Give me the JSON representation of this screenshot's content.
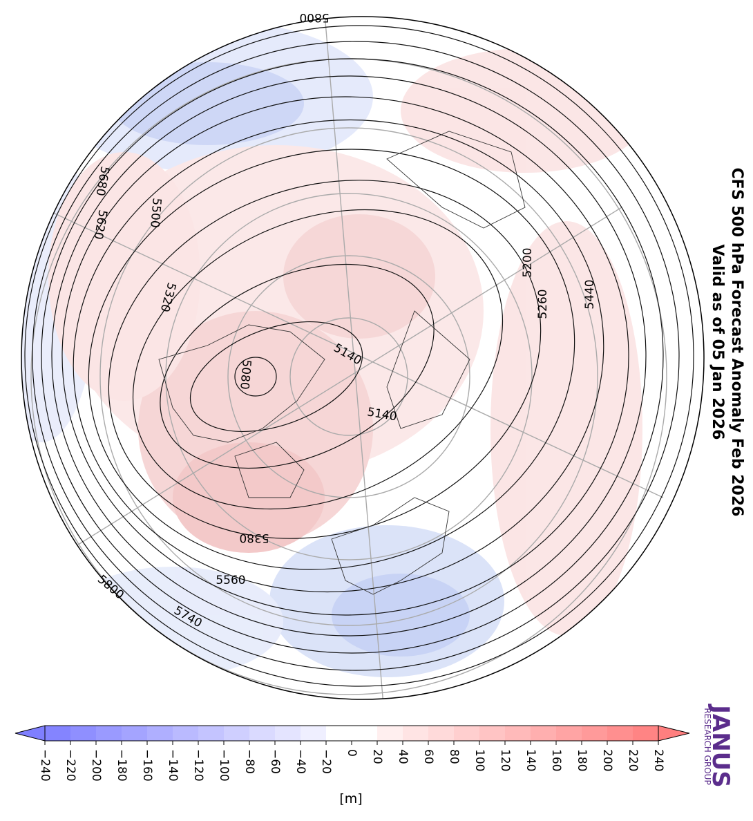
{
  "title_lines": [
    "CFS 500 hPa Forecast Anomaly Feb 2026",
    "Valid as of 05 Jan 2026"
  ],
  "contour_labels": [
    "5800",
    "5680",
    "5620",
    "5500",
    "5320",
    "5080",
    "5140",
    "5140",
    "5380",
    "5560",
    "5800",
    "5740",
    "5200",
    "5260",
    "5440"
  ],
  "colorbar": {
    "label": "[m]",
    "colors": [
      "#7f7fff",
      "#ffffff",
      "#ff7f7f"
    ],
    "lim": [
      -240,
      240
    ],
    "ticks": [
      {
        "value": -240,
        "label": "−240"
      },
      {
        "value": -220,
        "label": "−220"
      },
      {
        "value": -200,
        "label": "−200"
      },
      {
        "value": -180,
        "label": "−180"
      },
      {
        "value": -160,
        "label": "−160"
      },
      {
        "value": -140,
        "label": "−140"
      },
      {
        "value": -120,
        "label": "−120"
      },
      {
        "value": -100,
        "label": "−100"
      },
      {
        "value": -80,
        "label": "−80"
      },
      {
        "value": -60,
        "label": "−60"
      },
      {
        "value": -40,
        "label": "−40"
      },
      {
        "value": -20,
        "label": "−20"
      },
      0,
      20,
      40,
      60,
      80,
      100,
      120,
      140,
      160,
      180,
      200,
      220,
      240
    ]
  },
  "logo": {
    "name": "JANUS",
    "subtitle": "RESEARCH GROUP"
  }
}
